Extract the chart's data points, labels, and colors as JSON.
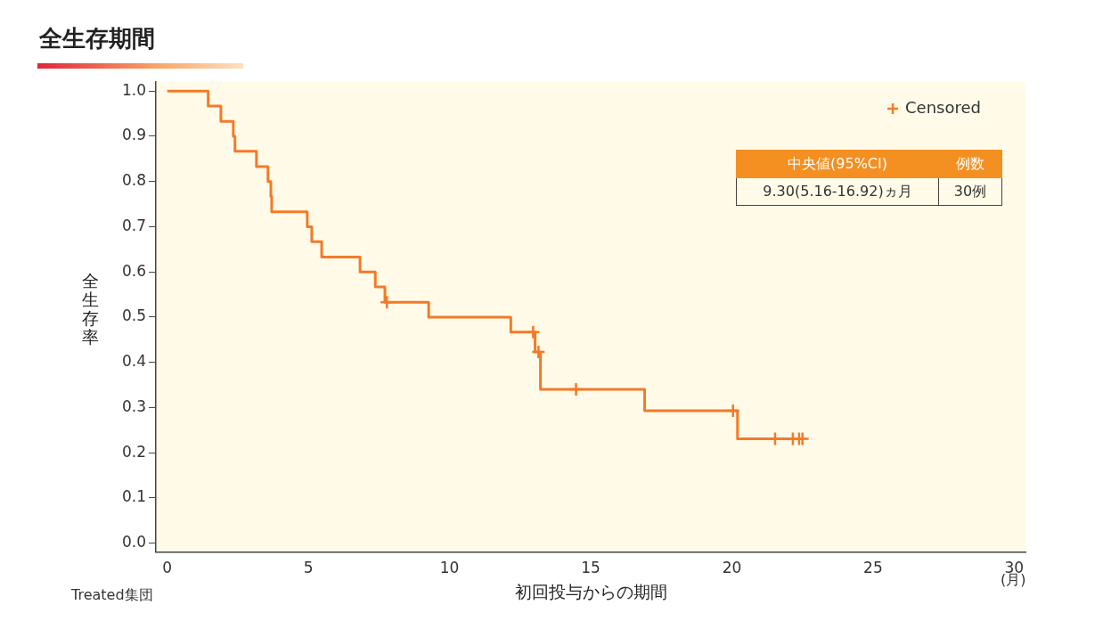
{
  "chart_data": {
    "type": "step",
    "title": "全生存期間",
    "xlabel": "初回投与からの期間",
    "ylabel": "全生存率",
    "xlim": [
      -0.4,
      30.4
    ],
    "ylim": [
      -0.02,
      1.02
    ],
    "xticks": [
      0,
      5,
      10,
      15,
      20,
      25,
      30
    ],
    "yticks": [
      {
        "value": 0,
        "label": "0.0"
      },
      {
        "value": 0.1,
        "label": "0.1"
      },
      {
        "value": 0.2,
        "label": "0.2"
      },
      {
        "value": 0.3,
        "label": "0.3"
      },
      {
        "value": 0.4,
        "label": "0.4"
      },
      {
        "value": 0.5,
        "label": "0.5"
      },
      {
        "value": 0.6,
        "label": "0.6"
      },
      {
        "value": 0.7,
        "label": "0.7"
      },
      {
        "value": 0.8,
        "label": "0.8"
      },
      {
        "value": 0.9,
        "label": "0.9"
      },
      {
        "value": 1,
        "label": "1.0"
      }
    ],
    "grid": false,
    "legend": "top right",
    "series": [
      {
        "type": "step",
        "color": "#f47a28",
        "marker": "none",
        "x": [
          0,
          1.45,
          1.9,
          2.34,
          2.4,
          3.16,
          3.57,
          3.67,
          3.7,
          4.96,
          5.12,
          5.47,
          6.83,
          7.37,
          7.71,
          9.26,
          12.17,
          13.03,
          13.22,
          16.91,
          20.2,
          22.5
        ],
        "values": [
          1,
          0.967,
          0.933,
          0.9,
          0.867,
          0.833,
          0.8,
          0.767,
          0.733,
          0.7,
          0.667,
          0.633,
          0.6,
          0.567,
          0.533,
          0.5,
          0.467,
          0.423,
          0.34,
          0.293,
          0.231,
          0.231
        ]
      },
      {
        "type": "scatter",
        "name": "Censored",
        "color": "#f47a28",
        "marker": "cross",
        "x": [
          7.78,
          12.96,
          13.15,
          14.48,
          20.04,
          21.53,
          22.16,
          22.38,
          22.5
        ],
        "values": [
          0.533,
          0.467,
          0.423,
          0.34,
          0.293,
          0.231,
          0.231,
          0.231,
          0.231
        ]
      }
    ],
    "annotations": [
      "中央値(95%CI)",
      "例数",
      "9.30(5.16-16.92)ヵ月",
      "30例",
      "(月)",
      "Treated集団"
    ]
  }
}
